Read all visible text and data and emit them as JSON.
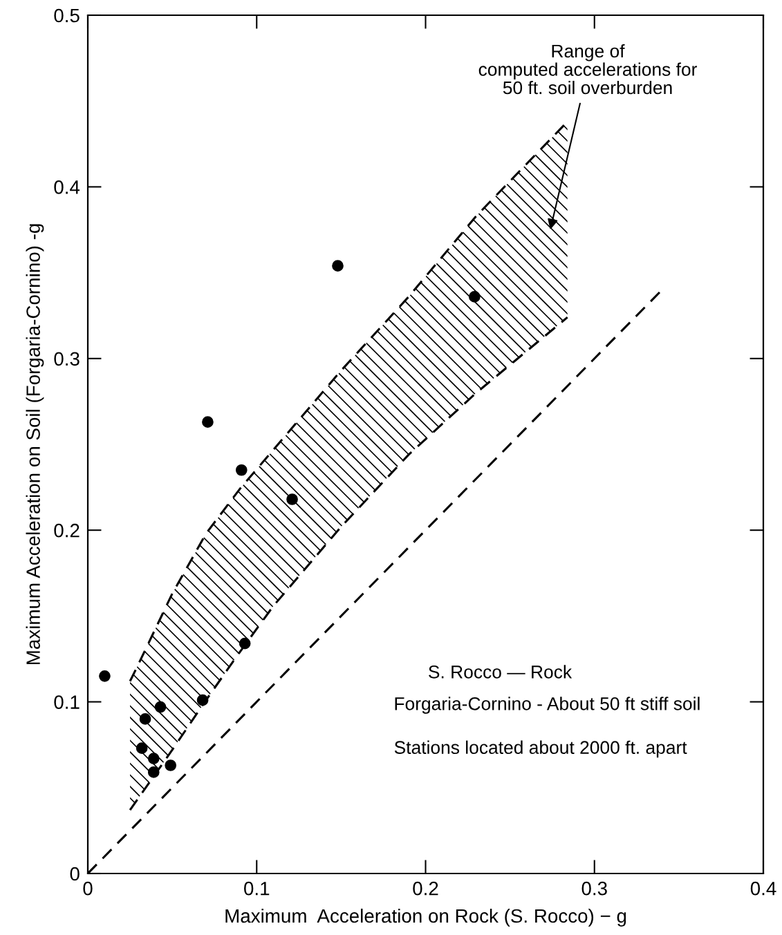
{
  "chart_data": {
    "type": "scatter",
    "xlabel": "Maximum  Acceleration on Rock (S. Rocco) − g",
    "ylabel": "Maximum Acceleration on Soil (Forgaria-Cornino) -g",
    "xlim": [
      0,
      0.4
    ],
    "ylim": [
      0,
      0.5
    ],
    "xticks": [
      0,
      0.1,
      0.2,
      0.3,
      0.4
    ],
    "yticks": [
      0,
      0.1,
      0.2,
      0.3,
      0.4,
      0.5
    ],
    "grid": false,
    "legend": false,
    "series": [
      {
        "type": "line",
        "color": "#000000",
        "line_style": "dashed",
        "x": [
          0.025,
          0.03,
          0.05,
          0.07,
          0.09,
          0.11,
          0.15,
          0.19,
          0.23,
          0.284
        ],
        "values": [
          0.112,
          0.122,
          0.163,
          0.198,
          0.224,
          0.247,
          0.293,
          0.336,
          0.383,
          0.438
        ]
      },
      {
        "type": "line",
        "color": "#000000",
        "line_style": "dashed",
        "x": [
          0.025,
          0.03,
          0.05,
          0.07,
          0.09,
          0.11,
          0.15,
          0.19,
          0.23,
          0.284
        ],
        "values": [
          0.037,
          0.044,
          0.072,
          0.101,
          0.129,
          0.156,
          0.202,
          0.244,
          0.28,
          0.324
        ]
      },
      {
        "type": "line",
        "color": "#000000",
        "line_style": "dashed",
        "x": [
          0,
          0.34
        ],
        "values": [
          0,
          0.34
        ]
      },
      {
        "color": "#000000",
        "marker": "circle",
        "x": [
          0.01,
          0.034,
          0.043,
          0.032,
          0.039,
          0.039,
          0.049,
          0.068,
          0.093,
          0.121,
          0.091,
          0.071,
          0.148,
          0.229
        ],
        "values": [
          0.115,
          0.09,
          0.097,
          0.073,
          0.067,
          0.059,
          0.063,
          0.101,
          0.134,
          0.218,
          0.235,
          0.263,
          0.354,
          0.336
        ]
      }
    ],
    "annotations": [
      "Range of\ncomputed accelerations for\n50 ft. soil overburden",
      "S. Rocco — Rock",
      "Forgaria-Cornino - About 50 ft stiff soil",
      "Stations located about 2000 ft. apart"
    ]
  }
}
